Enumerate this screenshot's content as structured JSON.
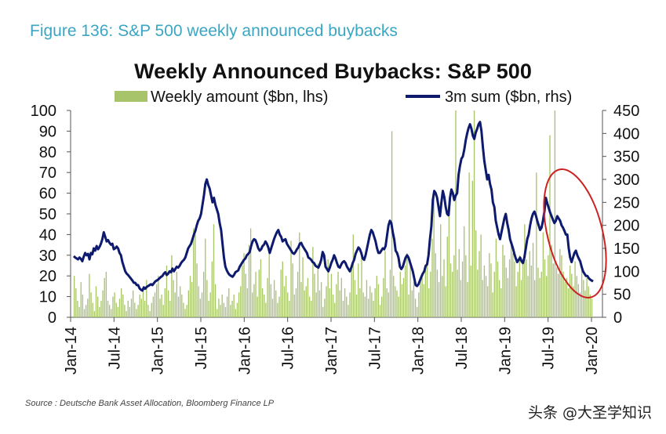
{
  "figure_label": "Figure 136: S&P 500 weekly announced buybacks",
  "source": "Source : Deutsche Bank Asset Allocation, Bloomberg Finance LP",
  "watermark": "头条 @大圣学知识",
  "colors": {
    "bars": "#a8c46a",
    "line": "#0d1a6e",
    "highlight": "#cc2222",
    "axis": "#555555"
  },
  "chart_data": {
    "type": "bar",
    "title": "Weekly Announced Buybacks: S&P 500",
    "xlabel": "",
    "ylabel": "",
    "y2label": "",
    "ylim": [
      0,
      100
    ],
    "y2lim": [
      0,
      450
    ],
    "yticks": [
      0,
      10,
      20,
      30,
      40,
      50,
      60,
      70,
      80,
      90,
      100
    ],
    "y2ticks": [
      0,
      50,
      100,
      150,
      200,
      250,
      300,
      350,
      400,
      450
    ],
    "xlim": [
      "2014-01",
      "2020-01"
    ],
    "xtick_labels": [
      "Jan-14",
      "Jul-14",
      "Jan-15",
      "Jul-15",
      "Jan-16",
      "Jul-16",
      "Jan-17",
      "Jul-17",
      "Jan-18",
      "Jul-18",
      "Jan-19",
      "Jul-19",
      "Jan-20"
    ],
    "legend_position": "top",
    "grid": false,
    "annotations": [
      "ellipse highlighting decline in 3m sum during 2H 2019"
    ],
    "series": [
      {
        "name": "Weekly amount ($bn, lhs)",
        "type": "bar",
        "axis": "left",
        "note": "weekly values, approximate, one per bar",
        "values": [
          20,
          14,
          8,
          5,
          17,
          11,
          4,
          6,
          9,
          21,
          12,
          7,
          3,
          15,
          10,
          5,
          8,
          13,
          19,
          22,
          8,
          6,
          4,
          10,
          12,
          7,
          5,
          9,
          14,
          11,
          6,
          3,
          8,
          5,
          9,
          13,
          7,
          4,
          6,
          11,
          9,
          15,
          8,
          18,
          6,
          3,
          7,
          10,
          12,
          16,
          20,
          9,
          11,
          6,
          14,
          25,
          13,
          8,
          30,
          18,
          12,
          22,
          10,
          15,
          11,
          7,
          4,
          6,
          13,
          20,
          17,
          43,
          40,
          26,
          15,
          9,
          12,
          22,
          38,
          18,
          8,
          12,
          27,
          45,
          16,
          4,
          9,
          6,
          11,
          7,
          5,
          10,
          14,
          6,
          8,
          11,
          4,
          7,
          12,
          15,
          25,
          31,
          21,
          14,
          35,
          43,
          12,
          16,
          22,
          10,
          23,
          28,
          14,
          11,
          7,
          19,
          33,
          16,
          9,
          18,
          13,
          7,
          10,
          23,
          27,
          15,
          20,
          12,
          8,
          37,
          26,
          11,
          14,
          22,
          41,
          17,
          29,
          13,
          15,
          19,
          10,
          8,
          34,
          21,
          12,
          26,
          13,
          17,
          5,
          9,
          15,
          28,
          14,
          21,
          11,
          7,
          16,
          22,
          13,
          19,
          8,
          14,
          10,
          6,
          12,
          25,
          40,
          18,
          11,
          26,
          14,
          31,
          12,
          10,
          18,
          9,
          15,
          12,
          8,
          14,
          20,
          16,
          6,
          10,
          19,
          32,
          14,
          12,
          23,
          90,
          20,
          15,
          13,
          10,
          22,
          16,
          19,
          25,
          31,
          11,
          28,
          13,
          17,
          9,
          5,
          12,
          18,
          20,
          16,
          25,
          27,
          14,
          22,
          38,
          60,
          31,
          23,
          17,
          45,
          20,
          28,
          15,
          39,
          55,
          26,
          22,
          30,
          100,
          23,
          33,
          18,
          27,
          44,
          30,
          17,
          70,
          25,
          66,
          100,
          42,
          23,
          32,
          40,
          18,
          25,
          20,
          15,
          31,
          26,
          12,
          22,
          38,
          27,
          18,
          14,
          35,
          30,
          24,
          19,
          28,
          36,
          31,
          27,
          15,
          22,
          30,
          18,
          26,
          45,
          28,
          20,
          32,
          25,
          36,
          18,
          70,
          24,
          19,
          22,
          41,
          28,
          20,
          30,
          88,
          35,
          26,
          100,
          24,
          21,
          33,
          30,
          22,
          17,
          19,
          14,
          25,
          21,
          15,
          27,
          20,
          16,
          12,
          23,
          18,
          13,
          19,
          15,
          11,
          9
        ]
      },
      {
        "name": "3m sum ($bn, rhs)",
        "type": "line",
        "axis": "right",
        "note": "weekly points, approximate",
        "values": [
          133,
          130,
          128,
          126,
          130,
          127,
          122,
          132,
          140,
          135,
          138,
          126,
          140,
          137,
          150,
          145,
          155,
          148,
          153,
          160,
          170,
          185,
          175,
          165,
          168,
          162,
          158,
          160,
          148,
          150,
          154,
          150,
          140,
          135,
          120,
          110,
          100,
          95,
          92,
          88,
          84,
          80,
          75,
          75,
          70,
          70,
          63,
          60,
          58,
          65,
          62,
          66,
          68,
          70,
          72,
          70,
          74,
          78,
          80,
          82,
          85,
          88,
          90,
          95,
          98,
          92,
          95,
          100,
          98,
          106,
          100,
          105,
          110,
          108,
          112,
          118,
          122,
          125,
          130,
          140,
          150,
          155,
          160,
          170,
          180,
          188,
          200,
          210,
          215,
          225,
          245,
          265,
          290,
          300,
          288,
          280,
          265,
          250,
          260,
          245,
          235,
          225,
          205,
          190,
          160,
          130,
          110,
          102,
          96,
          92,
          90,
          88,
          92,
          98,
          100,
          102,
          110,
          115,
          120,
          125,
          128,
          135,
          138,
          142,
          155,
          165,
          170,
          168,
          160,
          150,
          145,
          148,
          155,
          158,
          165,
          160,
          152,
          140,
          150,
          160,
          170,
          178,
          185,
          190,
          180,
          175,
          165,
          168,
          170,
          160,
          155,
          150,
          145,
          140,
          138,
          142,
          148,
          152,
          160,
          162,
          155,
          150,
          145,
          140,
          130,
          128,
          125,
          120,
          118,
          112,
          110,
          108,
          115,
          125,
          142,
          135,
          110,
          105,
          100,
          108,
          118,
          125,
          135,
          128,
          118,
          110,
          108,
          115,
          120,
          122,
          118,
          110,
          105,
          100,
          108,
          118,
          125,
          138,
          145,
          152,
          148,
          140,
          128,
          125,
          135,
          150,
          165,
          180,
          190,
          185,
          175,
          165,
          150,
          140,
          140,
          145,
          150,
          148,
          155,
          178,
          200,
          210,
          205,
          185,
          170,
          145,
          140,
          130,
          110,
          105,
          110,
          120,
          130,
          135,
          130,
          120,
          110,
          100,
          85,
          70,
          68,
          72,
          80,
          88,
          95,
          100,
          112,
          115,
          135,
          170,
          198,
          255,
          275,
          270,
          260,
          240,
          220,
          250,
          275,
          262,
          240,
          225,
          222,
          260,
          278,
          270,
          255,
          265,
          270,
          310,
          330,
          345,
          350,
          365,
          385,
          400,
          412,
          420,
          410,
          395,
          388,
          402,
          410,
          420,
          425,
          405,
          370,
          340,
          320,
          300,
          310,
          290,
          278,
          250,
          240,
          210,
          195,
          180,
          170,
          185,
          200,
          215,
          225,
          205,
          190,
          170,
          160,
          150,
          138,
          128,
          120,
          125,
          130,
          122,
          118,
          130,
          150,
          170,
          180,
          200,
          215,
          225,
          230,
          222,
          210,
          200,
          190,
          195,
          210,
          230,
          260,
          248,
          238,
          228,
          220,
          212,
          205,
          210,
          220,
          215,
          210,
          200,
          195,
          188,
          180,
          180,
          150,
          130,
          120,
          130,
          140,
          145,
          135,
          128,
          122,
          110,
          100,
          95,
          90,
          90,
          85,
          82,
          80,
          78
        ]
      }
    ]
  }
}
